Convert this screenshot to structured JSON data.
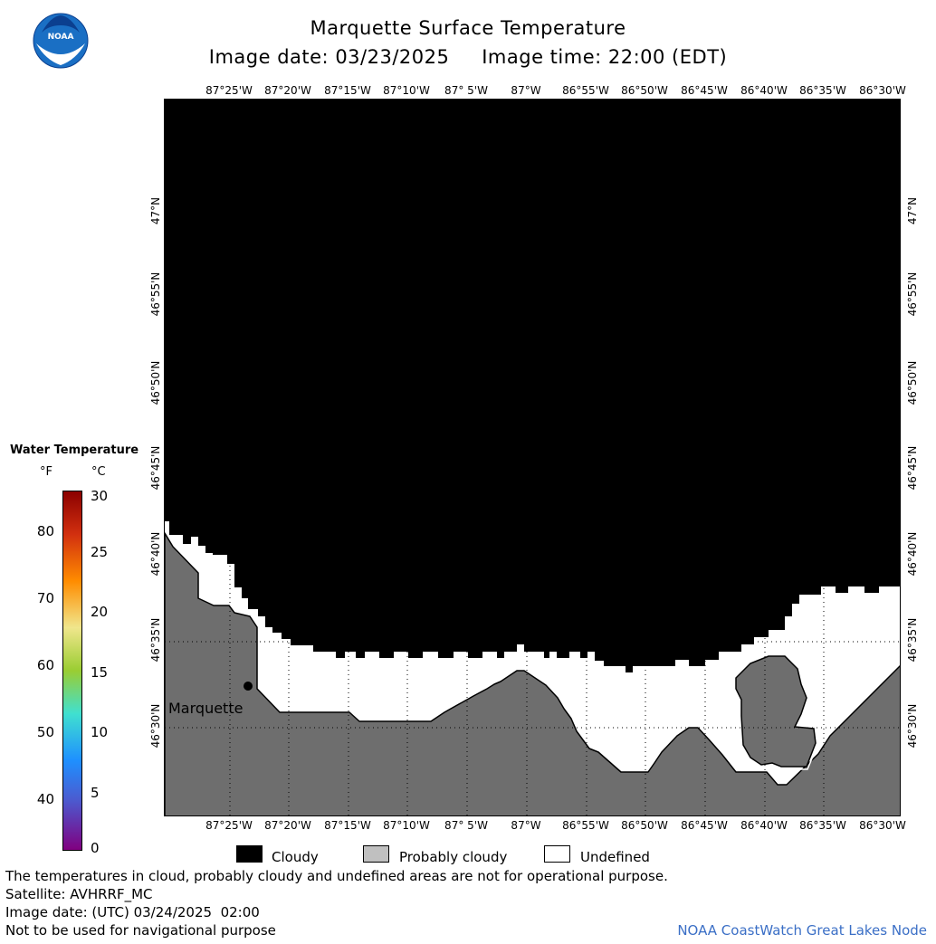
{
  "header": {
    "title": "Marquette Surface Temperature",
    "subtitle": "Image date: 03/23/2025     Image time: 22:00 (EDT)"
  },
  "logo": {
    "text": "NOAA",
    "icon": "noaa-logo-icon"
  },
  "map": {
    "lon_ticks": [
      "87°25'W",
      "87°20'W",
      "87°15'W",
      "87°10'W",
      "87° 5'W",
      "87°W",
      "86°55'W",
      "86°50'W",
      "86°45'W",
      "86°40'W",
      "86°35'W",
      "86°30'W"
    ],
    "lat_ticks": [
      "47°N",
      "46°55'N",
      "46°50'N",
      "46°45'N",
      "46°40'N",
      "46°35'N",
      "46°30'N"
    ],
    "city_label": "Marquette",
    "colors": {
      "cloudy": "#000000",
      "land": "#6e6e6e",
      "undefined": "#ffffff"
    }
  },
  "color_scale": {
    "title": "Water Temperature",
    "unit_f": "°F",
    "unit_c": "°C",
    "f_ticks": [
      "80",
      "70",
      "60",
      "50",
      "40"
    ],
    "c_ticks": [
      "30",
      "25",
      "20",
      "15",
      "10",
      "5",
      "0"
    ],
    "colors": [
      "#8b0000",
      "#ff8c00",
      "#f0e68c",
      "#32cd32",
      "#40e0d0",
      "#1e90ff",
      "#4b0082",
      "#800080"
    ]
  },
  "legend": {
    "cloudy": "Cloudy",
    "probably_cloudy": "Probably cloudy",
    "undefined": "Undefined",
    "colors": {
      "cloudy": "#000000",
      "probably_cloudy": "#c0c0c0",
      "undefined": "#ffffff"
    }
  },
  "footer": {
    "note": "The temperatures in cloud, probably cloudy and undefined areas are not for operational purpose.",
    "satellite": "Satellite: AVHRRF_MC",
    "utc_date": "Image date: (UTC) 03/24/2025  02:00",
    "disclaimer": "Not to be used for navigational purpose",
    "credit": "NOAA CoastWatch Great Lakes Node"
  }
}
